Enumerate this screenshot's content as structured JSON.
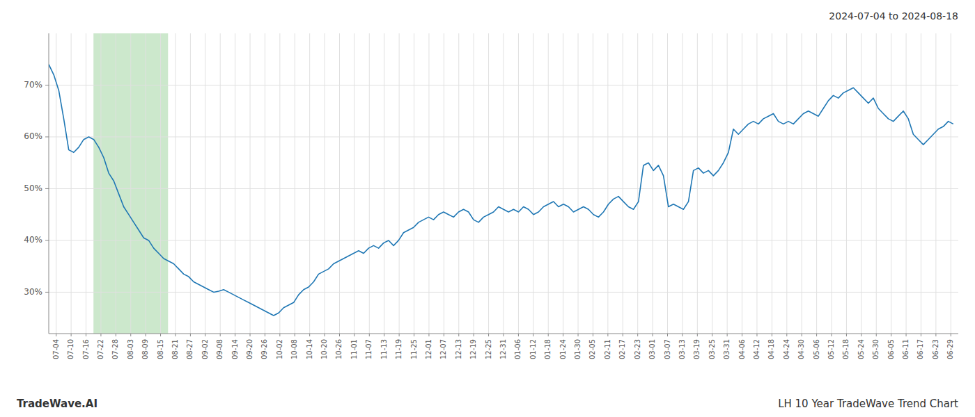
{
  "chart_data": {
    "type": "line",
    "title": "LH 10 Year TradeWave Trend Chart",
    "subtitle": "2024-07-04 to 2024-08-18",
    "annotations": [
      "TradeWave.AI"
    ],
    "color": "#1f77b4",
    "grid": true,
    "xlim": [
      0,
      182
    ],
    "xticks": [
      {
        "value": 1.4918,
        "label": "07-04"
      },
      {
        "value": 4.4754,
        "label": "07-10"
      },
      {
        "value": 7.459,
        "label": "07-16"
      },
      {
        "value": 10.4426,
        "label": "07-22"
      },
      {
        "value": 13.4262,
        "label": "07-28"
      },
      {
        "value": 16.4098,
        "label": "08-03"
      },
      {
        "value": 19.3934,
        "label": "08-09"
      },
      {
        "value": 22.377,
        "label": "08-15"
      },
      {
        "value": 25.3607,
        "label": "08-21"
      },
      {
        "value": 28.3443,
        "label": "08-27"
      },
      {
        "value": 31.3279,
        "label": "09-02"
      },
      {
        "value": 34.3115,
        "label": "09-08"
      },
      {
        "value": 37.2951,
        "label": "09-14"
      },
      {
        "value": 40.2787,
        "label": "09-20"
      },
      {
        "value": 43.2623,
        "label": "09-26"
      },
      {
        "value": 46.2459,
        "label": "10-02"
      },
      {
        "value": 49.2295,
        "label": "10-08"
      },
      {
        "value": 52.2131,
        "label": "10-14"
      },
      {
        "value": 55.1967,
        "label": "10-20"
      },
      {
        "value": 58.1803,
        "label": "10-26"
      },
      {
        "value": 61.1639,
        "label": "11-01"
      },
      {
        "value": 64.1475,
        "label": "11-07"
      },
      {
        "value": 67.1311,
        "label": "11-13"
      },
      {
        "value": 70.1148,
        "label": "11-19"
      },
      {
        "value": 73.0984,
        "label": "11-25"
      },
      {
        "value": 76.082,
        "label": "12-01"
      },
      {
        "value": 79.0656,
        "label": "12-07"
      },
      {
        "value": 82.0492,
        "label": "12-13"
      },
      {
        "value": 85.0328,
        "label": "12-19"
      },
      {
        "value": 88.0164,
        "label": "12-25"
      },
      {
        "value": 91.0,
        "label": "12-31"
      },
      {
        "value": 93.9836,
        "label": "01-06"
      },
      {
        "value": 96.9672,
        "label": "01-12"
      },
      {
        "value": 99.9508,
        "label": "01-18"
      },
      {
        "value": 102.9344,
        "label": "01-24"
      },
      {
        "value": 105.918,
        "label": "01-30"
      },
      {
        "value": 108.9016,
        "label": "02-05"
      },
      {
        "value": 111.8852,
        "label": "02-11"
      },
      {
        "value": 114.8689,
        "label": "02-17"
      },
      {
        "value": 117.8525,
        "label": "02-23"
      },
      {
        "value": 120.8361,
        "label": "03-01"
      },
      {
        "value": 123.8197,
        "label": "03-07"
      },
      {
        "value": 126.8033,
        "label": "03-13"
      },
      {
        "value": 129.7869,
        "label": "03-19"
      },
      {
        "value": 132.7705,
        "label": "03-25"
      },
      {
        "value": 135.7541,
        "label": "03-31"
      },
      {
        "value": 138.7377,
        "label": "04-06"
      },
      {
        "value": 141.7213,
        "label": "04-12"
      },
      {
        "value": 144.7049,
        "label": "04-18"
      },
      {
        "value": 147.6885,
        "label": "04-24"
      },
      {
        "value": 150.6721,
        "label": "04-30"
      },
      {
        "value": 153.6557,
        "label": "05-06"
      },
      {
        "value": 156.6393,
        "label": "05-12"
      },
      {
        "value": 159.623,
        "label": "05-18"
      },
      {
        "value": 162.6066,
        "label": "05-24"
      },
      {
        "value": 165.5902,
        "label": "05-30"
      },
      {
        "value": 168.5738,
        "label": "06-05"
      },
      {
        "value": 171.5574,
        "label": "06-11"
      },
      {
        "value": 174.541,
        "label": "06-17"
      },
      {
        "value": 177.5246,
        "label": "06-23"
      },
      {
        "value": 180.5082,
        "label": "06-29"
      }
    ],
    "ylim": [
      22,
      80
    ],
    "yticks": [
      {
        "value": 30,
        "label": "30%"
      },
      {
        "value": 40,
        "label": "40%"
      },
      {
        "value": 50,
        "label": "50%"
      },
      {
        "value": 60,
        "label": "60%"
      },
      {
        "value": 70,
        "label": "70%"
      }
    ],
    "shaded_xlim": [
      8.9508,
      23.8689
    ],
    "shaded_color": "#cce8cc",
    "values": [
      74.0,
      72.0,
      69.0,
      63.5,
      57.5,
      57.0,
      58.0,
      59.5,
      60.0,
      59.5,
      58.0,
      56.0,
      53.0,
      51.5,
      49.0,
      46.5,
      45.0,
      43.5,
      42.0,
      40.5,
      40.0,
      38.5,
      37.5,
      36.5,
      36.0,
      35.5,
      34.5,
      33.5,
      33.0,
      32.0,
      31.5,
      31.0,
      30.5,
      30.0,
      30.2,
      30.5,
      30.0,
      29.5,
      29.0,
      28.5,
      28.0,
      27.5,
      27.0,
      26.5,
      26.0,
      25.5,
      26.0,
      27.0,
      27.5,
      28.0,
      29.5,
      30.5,
      31.0,
      32.0,
      33.5,
      34.0,
      34.5,
      35.5,
      36.0,
      36.5,
      37.0,
      37.5,
      38.0,
      37.5,
      38.5,
      39.0,
      38.5,
      39.5,
      40.0,
      39.0,
      40.0,
      41.5,
      42.0,
      42.5,
      43.5,
      44.0,
      44.5,
      44.0,
      45.0,
      45.5,
      45.0,
      44.5,
      45.5,
      46.0,
      45.5,
      44.0,
      43.5,
      44.5,
      45.0,
      45.5,
      46.5,
      46.0,
      45.5,
      46.0,
      45.5,
      46.5,
      46.0,
      45.0,
      45.5,
      46.5,
      47.0,
      47.5,
      46.5,
      47.0,
      46.5,
      45.5,
      46.0,
      46.5,
      46.0,
      45.0,
      44.5,
      45.5,
      47.0,
      48.0,
      48.5,
      47.5,
      46.5,
      46.0,
      47.5,
      54.5,
      55.0,
      53.5,
      54.5,
      52.5,
      46.5,
      47.0,
      46.5,
      46.0,
      47.5,
      53.5,
      54.0,
      53.0,
      53.5,
      52.5,
      53.5,
      55.0,
      57.0,
      61.5,
      60.5,
      61.5,
      62.5,
      63.0,
      62.5,
      63.5,
      64.0,
      64.5,
      63.0,
      62.5,
      63.0,
      62.5,
      63.5,
      64.5,
      65.0,
      64.5,
      64.0,
      65.5,
      67.0,
      68.0,
      67.5,
      68.5,
      69.0,
      69.5,
      68.5,
      67.5,
      66.5,
      67.5,
      65.5,
      64.5,
      63.5,
      63.0,
      64.0,
      65.0,
      63.5,
      60.5,
      59.5,
      58.5,
      59.5,
      60.5,
      61.5,
      62.0,
      63.0,
      62.5
    ]
  }
}
